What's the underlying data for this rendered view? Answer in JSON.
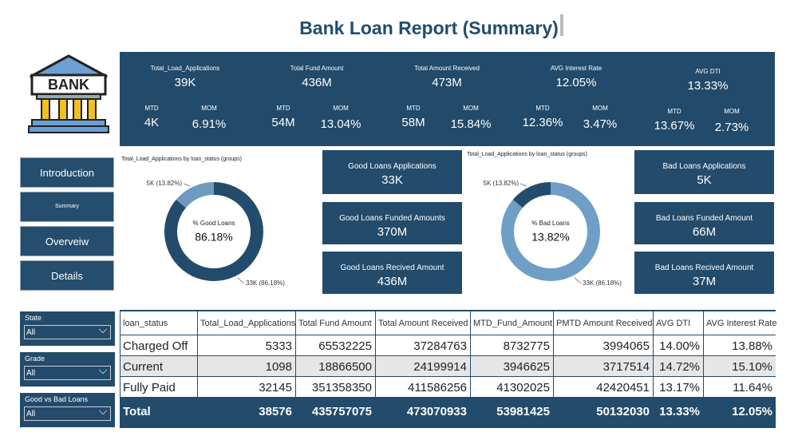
{
  "header": {
    "title": "Bank Loan Report (Summary)"
  },
  "kpis": [
    {
      "title": "Total_Load_Applications",
      "value": "39K",
      "mtd_label": "MTD",
      "mtd": "4K",
      "mom_label": "MOM",
      "mom": "6.91%"
    },
    {
      "title": "Total Fund Amount",
      "value": "436M",
      "mtd_label": "MTD",
      "mtd": "54M",
      "mom_label": "MOM",
      "mom": "13.04%"
    },
    {
      "title": "Total Amount Received",
      "value": "473M",
      "mtd_label": "MTD",
      "mtd": "58M",
      "mom_label": "MOM",
      "mom": "15.84%"
    },
    {
      "title": "AVG Interest Rate",
      "value": "12.05%",
      "mtd_label": "MTD",
      "mtd": "12.36%",
      "mom_label": "MOM",
      "mom": "3.47%"
    },
    {
      "title": "AVG DTI",
      "value": "13.33%",
      "mtd_label": "MTD",
      "mtd": "13.67%",
      "mom_label": "MOM",
      "mom": "2.73%"
    }
  ],
  "logo": {
    "text": "BANK"
  },
  "navigation": [
    "Introduction",
    "Summary",
    "Overveiw",
    "Details"
  ],
  "chart_data": [
    {
      "type": "pie",
      "title": "Total_Load_Applications by loan_status (groups)",
      "center_label": "% Good Loans",
      "center_value": "86.18%",
      "values": [
        13.82,
        86.18
      ],
      "value_labels": [
        "5K (13.82%)",
        "33K (86.18%)"
      ],
      "colors": [
        "#6f9ac0",
        "#234b6b"
      ]
    },
    {
      "type": "pie",
      "title": "Total_Load_Applications by loan_status (groups)",
      "center_label": "% Bad Loans",
      "center_value": "13.82%",
      "values": [
        13.82,
        86.18
      ],
      "value_labels": [
        "5K (13.82%)",
        "33K (86.18%)"
      ],
      "colors": [
        "#234b6b",
        "#6f9ec6"
      ]
    }
  ],
  "cards": {
    "good": [
      {
        "label": "Good Loans Applications",
        "value": "33K"
      },
      {
        "label": "Good Loans Funded Amounts",
        "value": "370M"
      },
      {
        "label": "Good Loans Recived Amount",
        "value": "436M"
      }
    ],
    "bad": [
      {
        "label": "Bad Loans Applications",
        "value": "5K"
      },
      {
        "label": "Bad Loans Funded Amount",
        "value": "66M"
      },
      {
        "label": "Bad Loans Recived Amount",
        "value": "37M"
      }
    ]
  },
  "filters": [
    {
      "label": "State",
      "value": "All"
    },
    {
      "label": "Grade",
      "value": "All"
    },
    {
      "label": "Good vs Bad Loans",
      "value": "All"
    }
  ],
  "table": {
    "columns": [
      "loan_status",
      "Total_Load_Applications",
      "Total Fund Amount",
      "Total Amount Received",
      "MTD_Fund_Amount",
      "PMTD Amount Received",
      "AVG DTI",
      "AVG Interest Rate"
    ],
    "rows": [
      [
        "Charged Off",
        "5333",
        "65532225",
        "37284763",
        "8732775",
        "3994065",
        "14.00%",
        "13.88%"
      ],
      [
        "Current",
        "1098",
        "18866500",
        "24199914",
        "3946625",
        "3717514",
        "14.72%",
        "15.10%"
      ],
      [
        "Fully Paid",
        "32145",
        "351358350",
        "411586256",
        "41302025",
        "42420451",
        "13.17%",
        "11.64%"
      ]
    ],
    "total": [
      "Total",
      "38576",
      "435757075",
      "473070933",
      "53981425",
      "50132030",
      "13.33%",
      "12.05%"
    ]
  }
}
